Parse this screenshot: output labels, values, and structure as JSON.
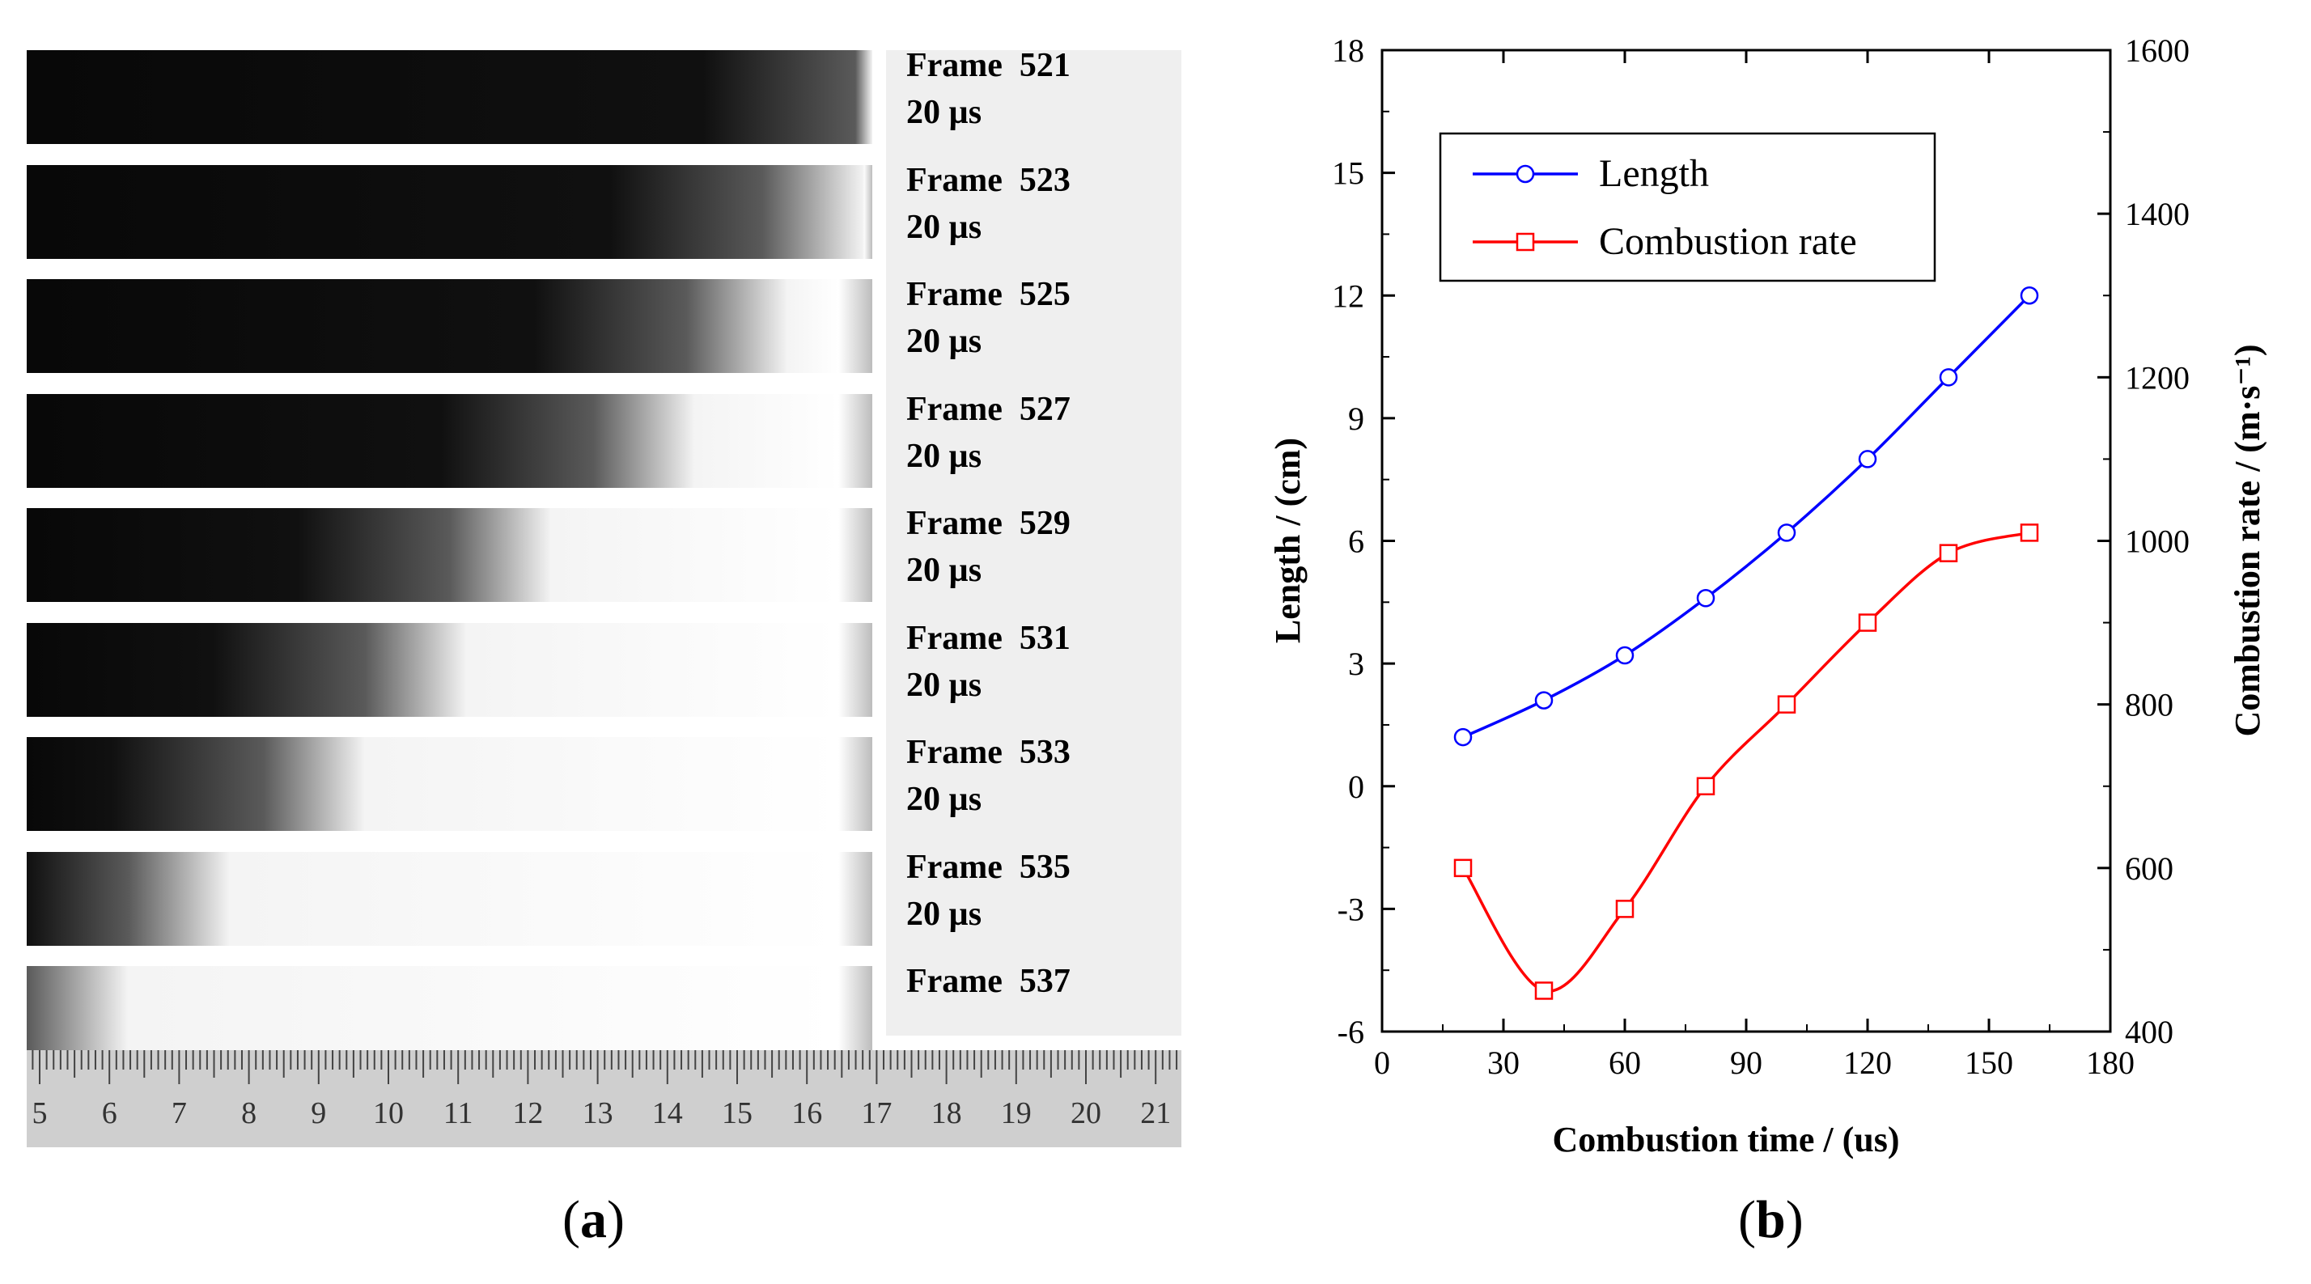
{
  "panel_a": {
    "label_open": "(",
    "label_letter": "a",
    "label_close": ")",
    "frames": [
      {
        "name": "Frame  521",
        "interval": "20 µs",
        "brightness": 0.02
      },
      {
        "name": "Frame  523",
        "interval": "20 µs",
        "brightness": 0.13
      },
      {
        "name": "Frame  525",
        "interval": "20 µs",
        "brightness": 0.22
      },
      {
        "name": "Frame  527",
        "interval": "20 µs",
        "brightness": 0.33
      },
      {
        "name": "Frame  529",
        "interval": "20 µs",
        "brightness": 0.5
      },
      {
        "name": "Frame  531",
        "interval": "20 µs",
        "brightness": 0.6
      },
      {
        "name": "Frame  533",
        "interval": "20 µs",
        "brightness": 0.72
      },
      {
        "name": "Frame  535",
        "interval": "20 µs",
        "brightness": 0.88
      },
      {
        "name": "Frame  537",
        "interval": "",
        "brightness": 1.0
      }
    ],
    "ruler": {
      "start": 5,
      "end": 21,
      "labels": [
        "5",
        "6",
        "7",
        "8",
        "9",
        "10",
        "11",
        "12",
        "13",
        "14",
        "15",
        "16",
        "17",
        "18",
        "19",
        "20",
        "21"
      ]
    }
  },
  "panel_b": {
    "label_open": "(",
    "label_letter": "b",
    "label_close": ")"
  },
  "chart_data": {
    "type": "line",
    "title": "",
    "xlabel": "Combustion time / (us)",
    "ylabel": "Length / (cm)",
    "y2label": "Combustion rate / (m·s⁻¹)",
    "xlim": [
      0,
      180
    ],
    "ylim": [
      -6,
      18
    ],
    "y2lim": [
      400,
      1600
    ],
    "xticks": [
      0,
      30,
      60,
      90,
      120,
      150,
      180
    ],
    "yticks": [
      -6,
      -3,
      0,
      3,
      6,
      9,
      12,
      15,
      18
    ],
    "y2ticks": [
      400,
      600,
      800,
      1000,
      1200,
      1400,
      1600
    ],
    "legend_position": "top-left",
    "series": [
      {
        "name": "Length",
        "axis": "left",
        "color": "#0000ff",
        "marker": "circle",
        "x": [
          20,
          40,
          60,
          80,
          100,
          120,
          140,
          160
        ],
        "values": [
          1.2,
          2.1,
          3.2,
          4.6,
          6.2,
          8.0,
          10.0,
          12.0
        ]
      },
      {
        "name": "Combustion rate",
        "axis": "right",
        "color": "#ff0000",
        "marker": "square",
        "x": [
          20,
          40,
          60,
          80,
          100,
          120,
          140,
          160
        ],
        "values": [
          600,
          450,
          550,
          700,
          800,
          900,
          985,
          1010
        ]
      }
    ]
  }
}
